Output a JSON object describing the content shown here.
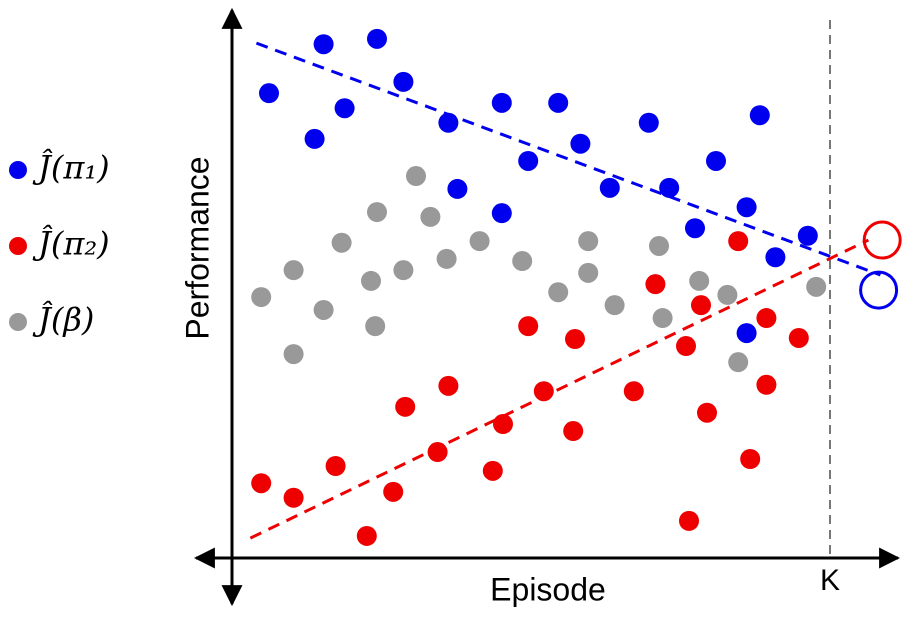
{
  "chart_data": {
    "type": "scatter",
    "x_label": "Episode",
    "y_label": "Performance",
    "xlim": [
      -5,
      110
    ],
    "ylim": [
      0,
      100
    ],
    "xticks": [
      {
        "value": 100,
        "label": "K"
      }
    ],
    "series": [
      {
        "name": "Ĵ(π₁)",
        "color": "#0000ee",
        "x": [
          6.5,
          15.6,
          24.5,
          14.1,
          19.1,
          28.9,
          36.4,
          37.9,
          45.3,
          45.3,
          49.7,
          54.7,
          58.4,
          63.3,
          69.8,
          73.2,
          77.5,
          81.0,
          86.1,
          88.3,
          90.9,
          96.3,
          86.1
        ],
        "values": [
          86.4,
          95.5,
          96.5,
          77.9,
          83.6,
          88.5,
          80.9,
          68.6,
          84.6,
          64.1,
          73.8,
          84.6,
          77.0,
          68.8,
          80.9,
          68.8,
          61.3,
          73.8,
          65.2,
          82.3,
          55.9,
          59.9,
          41.8
        ],
        "trend": {
          "x": [
            4.4,
            108.4
          ],
          "values": [
            95.7,
            52.6
          ]
        },
        "projection": {
          "x": 108.1,
          "value": 49.8
        }
      },
      {
        "name": "Ĵ(π₂)",
        "color": "#ee0000",
        "x": [
          5.2,
          10.6,
          17.6,
          22.8,
          27.2,
          29.2,
          34.6,
          36.4,
          43.8,
          45.5,
          49.7,
          52.3,
          57.2,
          57.5,
          67.3,
          70.9,
          76.0,
          76.5,
          78.5,
          79.5,
          84.7,
          86.7,
          89.4,
          89.4,
          94.8
        ],
        "values": [
          13.9,
          11.2,
          17.1,
          4.1,
          12.3,
          28.1,
          19.7,
          32.0,
          16.2,
          24.9,
          43.1,
          31.0,
          23.6,
          40.7,
          31.0,
          50.9,
          39.4,
          6.9,
          47.0,
          27.0,
          58.9,
          18.4,
          44.6,
          32.2,
          40.9
        ],
        "trend": {
          "x": [
            3.4,
            106.4
          ],
          "values": [
            3.7,
            59.1
          ]
        },
        "projection": {
          "x": 108.7,
          "value": 59.1
        }
      },
      {
        "name": "Ĵ(β)",
        "color": "#999999",
        "x": [
          5.2,
          10.6,
          10.6,
          15.6,
          18.6,
          23.5,
          24.2,
          24.5,
          28.9,
          31.0,
          33.4,
          36.1,
          41.6,
          48.7,
          54.7,
          59.7,
          59.7,
          64.1,
          71.5,
          72.1,
          78.2,
          82.9,
          84.7,
          97.7
        ],
        "values": [
          48.5,
          53.5,
          37.9,
          46.1,
          58.6,
          51.5,
          43.1,
          64.3,
          53.5,
          71.0,
          63.4,
          55.6,
          58.9,
          55.2,
          49.4,
          58.9,
          53.0,
          47.0,
          58.0,
          44.6,
          51.5,
          48.9,
          36.4,
          50.4
        ]
      }
    ]
  }
}
